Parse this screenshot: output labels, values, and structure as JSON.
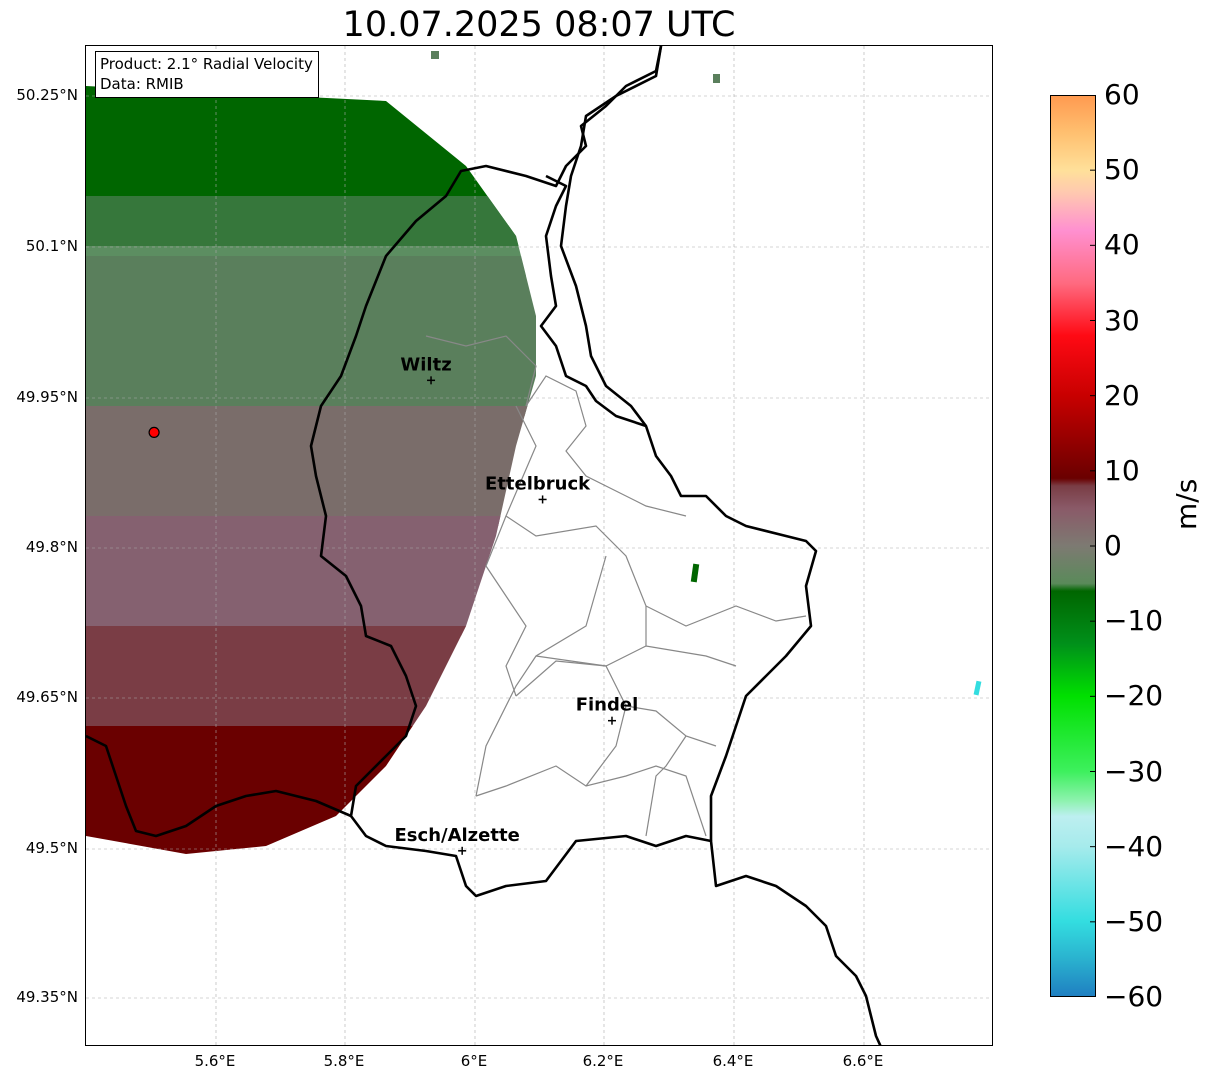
{
  "title": "10.07.2025 08:07 UTC",
  "info": {
    "product": "Product: 2.1° Radial Velocity",
    "source": "Data: RMIB"
  },
  "lat_labels": [
    "50.25°N",
    "50.1°N",
    "49.95°N",
    "49.8°N",
    "49.65°N",
    "49.5°N",
    "49.35°N"
  ],
  "lon_labels": [
    "5.6°E",
    "5.8°E",
    "6°E",
    "6.2°E",
    "6.4°E",
    "6.6°E"
  ],
  "map": {
    "lon_range": [
      5.4,
      6.8
    ],
    "lat_range": [
      49.3,
      50.3
    ],
    "radar": {
      "lon": 5.505,
      "lat": 49.914
    },
    "cities": [
      {
        "name": "Wiltz",
        "lon": 5.932,
        "lat": 49.966
      },
      {
        "name": "Ettelbruck",
        "lon": 6.104,
        "lat": 49.847
      },
      {
        "name": "Findel",
        "lon": 6.211,
        "lat": 49.626
      },
      {
        "name": "Esch/Alzette",
        "lon": 5.98,
        "lat": 49.496
      }
    ]
  },
  "colorbar": {
    "label": "m/s",
    "range": [
      -60,
      60
    ],
    "ticks": [
      "60",
      "50",
      "40",
      "30",
      "20",
      "10",
      "0",
      "−10",
      "−20",
      "−30",
      "−40",
      "−50",
      "−60"
    ],
    "stops": [
      {
        "v": -60,
        "c": "#1f7fc1"
      },
      {
        "v": -55,
        "c": "#2ab2cf"
      },
      {
        "v": -50,
        "c": "#33dde0"
      },
      {
        "v": -40,
        "c": "#a6ebec"
      },
      {
        "v": -36,
        "c": "#bdeff0"
      },
      {
        "v": -34,
        "c": "#8ff2b0"
      },
      {
        "v": -30,
        "c": "#3df05d"
      },
      {
        "v": -20,
        "c": "#00e000"
      },
      {
        "v": -13,
        "c": "#00901a"
      },
      {
        "v": -6,
        "c": "#006600"
      },
      {
        "v": -5,
        "c": "#5a8a5a"
      },
      {
        "v": 0,
        "c": "#7d7a72"
      },
      {
        "v": 5,
        "c": "#8a5a68"
      },
      {
        "v": 8,
        "c": "#7a3d45"
      },
      {
        "v": 9,
        "c": "#6a0000"
      },
      {
        "v": 20,
        "c": "#c80000"
      },
      {
        "v": 28,
        "c": "#ff0a14"
      },
      {
        "v": 35,
        "c": "#ff6a80"
      },
      {
        "v": 42,
        "c": "#ff90d0"
      },
      {
        "v": 47,
        "c": "#ffc8b0"
      },
      {
        "v": 50,
        "c": "#ffe09a"
      },
      {
        "v": 55,
        "c": "#ffc070"
      },
      {
        "v": 60,
        "c": "#ff9a50"
      }
    ]
  },
  "chart_data": {
    "type": "heatmap",
    "title": "10.07.2025 08:07 UTC",
    "colorbar_label": "m/s",
    "colorbar_range": [
      -60,
      60
    ],
    "regions": [
      {
        "area": "north of radar",
        "velocity_ms": -8
      },
      {
        "area": "north-central",
        "velocity_ms": -3
      },
      {
        "area": "radar latitude",
        "velocity_ms": 2
      },
      {
        "area": "south-central",
        "velocity_ms": 6
      },
      {
        "area": "far south",
        "velocity_ms": 12
      }
    ]
  }
}
